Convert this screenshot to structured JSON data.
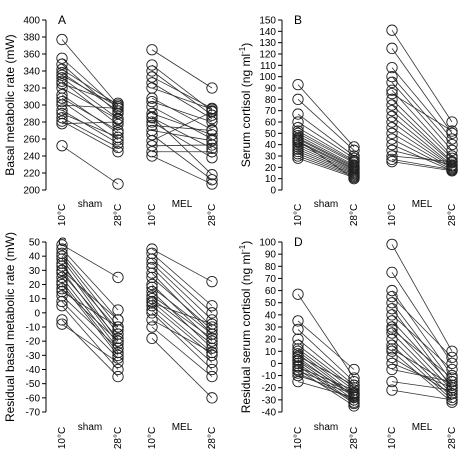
{
  "chart_data": [
    {
      "type": "scatter",
      "panel": "A",
      "ylabel": "Basal metabolic rate (mW)",
      "ylim": [
        200,
        400
      ],
      "yticks": [
        200,
        220,
        240,
        260,
        280,
        300,
        320,
        340,
        360,
        380,
        400
      ],
      "groups": [
        {
          "name": "sham",
          "x": [
            "10°C",
            "28°C"
          ],
          "pairs": [
            [
              377,
              300
            ],
            [
              355,
              296
            ],
            [
              348,
              290
            ],
            [
              342,
              300
            ],
            [
              338,
              293
            ],
            [
              335,
              298
            ],
            [
              332,
              284
            ],
            [
              328,
              277
            ],
            [
              325,
              302
            ],
            [
              320,
              283
            ],
            [
              312,
              267
            ],
            [
              308,
              270
            ],
            [
              304,
              259
            ],
            [
              300,
              296
            ],
            [
              294,
              255
            ],
            [
              290,
              262
            ],
            [
              285,
              250
            ],
            [
              281,
              245
            ],
            [
              278,
              280
            ],
            [
              252,
              207
            ]
          ]
        },
        {
          "name": "MEL",
          "x": [
            "10°C",
            "28°C"
          ],
          "pairs": [
            [
              365,
              320
            ],
            [
              347,
              293
            ],
            [
              340,
              288
            ],
            [
              333,
              296
            ],
            [
              326,
              284
            ],
            [
              320,
              295
            ],
            [
              308,
              271
            ],
            [
              304,
              280
            ],
            [
              298,
              260
            ],
            [
              290,
              265
            ],
            [
              285,
              249
            ],
            [
              280,
              238
            ],
            [
              276,
              270
            ],
            [
              270,
              258
            ],
            [
              265,
              212
            ],
            [
              258,
              292
            ],
            [
              252,
              253
            ],
            [
              245,
              245
            ],
            [
              240,
              207
            ],
            [
              286,
              218
            ]
          ]
        }
      ]
    },
    {
      "type": "scatter",
      "panel": "B",
      "ylabel": "Serum cortisol (ng ml",
      "ylabel_sup": "-1",
      "ylabel_end": ")",
      "ylim": [
        0,
        150
      ],
      "yticks": [
        0,
        10,
        20,
        30,
        40,
        50,
        60,
        70,
        80,
        90,
        100,
        110,
        120,
        130,
        140,
        150
      ],
      "groups": [
        {
          "name": "sham",
          "x": [
            "10°C",
            "28°C"
          ],
          "pairs": [
            [
              93,
              38
            ],
            [
              80,
              35
            ],
            [
              67,
              30
            ],
            [
              60,
              28
            ],
            [
              55,
              26
            ],
            [
              52,
              25
            ],
            [
              50,
              24
            ],
            [
              48,
              22
            ],
            [
              46,
              21
            ],
            [
              45,
              20
            ],
            [
              43,
              19
            ],
            [
              42,
              18
            ],
            [
              40,
              17
            ],
            [
              38,
              16
            ],
            [
              36,
              15
            ],
            [
              34,
              14
            ],
            [
              32,
              13
            ],
            [
              30,
              12
            ],
            [
              28,
              11
            ],
            [
              44,
              10
            ]
          ]
        },
        {
          "name": "MEL",
          "x": [
            "10°C",
            "28°C"
          ],
          "pairs": [
            [
              141,
              60
            ],
            [
              125,
              50
            ],
            [
              108,
              45
            ],
            [
              100,
              40
            ],
            [
              95,
              35
            ],
            [
              88,
              30
            ],
            [
              80,
              28
            ],
            [
              75,
              25
            ],
            [
              70,
              24
            ],
            [
              65,
              22
            ],
            [
              60,
              21
            ],
            [
              55,
              20
            ],
            [
              50,
              19
            ],
            [
              45,
              18
            ],
            [
              40,
              17
            ],
            [
              35,
              22
            ],
            [
              30,
              25
            ],
            [
              27,
              18
            ],
            [
              25,
              17
            ],
            [
              85,
              52
            ]
          ]
        }
      ]
    },
    {
      "type": "scatter",
      "panel": "C",
      "ylabel": "Residual basal metabolic rate (mW)",
      "ylim": [
        -70,
        50
      ],
      "yticks": [
        -70,
        -60,
        -50,
        -40,
        -30,
        -20,
        -10,
        0,
        10,
        20,
        30,
        40,
        50
      ],
      "groups": [
        {
          "name": "sham",
          "x": [
            "10°C",
            "28°C"
          ],
          "pairs": [
            [
              48,
              25
            ],
            [
              45,
              2
            ],
            [
              42,
              -5
            ],
            [
              40,
              -10
            ],
            [
              38,
              -15
            ],
            [
              35,
              -20
            ],
            [
              33,
              -12
            ],
            [
              30,
              -22
            ],
            [
              28,
              -18
            ],
            [
              25,
              -25
            ],
            [
              22,
              -28
            ],
            [
              20,
              -30
            ],
            [
              17,
              -20
            ],
            [
              15,
              -10
            ],
            [
              12,
              -25
            ],
            [
              8,
              -32
            ],
            [
              5,
              -40
            ],
            [
              -5,
              -45
            ],
            [
              -8,
              -35
            ],
            [
              30,
              -5
            ]
          ]
        },
        {
          "name": "MEL",
          "x": [
            "10°C",
            "28°C"
          ],
          "pairs": [
            [
              45,
              22
            ],
            [
              42,
              5
            ],
            [
              38,
              0
            ],
            [
              35,
              -5
            ],
            [
              32,
              -10
            ],
            [
              28,
              -15
            ],
            [
              25,
              -12
            ],
            [
              20,
              -20
            ],
            [
              15,
              -25
            ],
            [
              12,
              -18
            ],
            [
              10,
              -22
            ],
            [
              8,
              -28
            ],
            [
              5,
              -30
            ],
            [
              2,
              -35
            ],
            [
              0,
              -40
            ],
            [
              -5,
              -28
            ],
            [
              -10,
              -45
            ],
            [
              -18,
              -60
            ],
            [
              7,
              -8
            ],
            [
              18,
              -15
            ]
          ]
        }
      ]
    },
    {
      "type": "scatter",
      "panel": "D",
      "ylabel": "Residual serum cortisol (ng ml",
      "ylabel_sup": "-1",
      "ylabel_end": ")",
      "ylim": [
        -40,
        100
      ],
      "yticks": [
        -40,
        -30,
        -20,
        -10,
        0,
        10,
        20,
        30,
        40,
        50,
        60,
        70,
        80,
        90,
        100
      ],
      "groups": [
        {
          "name": "sham",
          "x": [
            "10°C",
            "28°C"
          ],
          "pairs": [
            [
              57,
              -12
            ],
            [
              35,
              -5
            ],
            [
              28,
              -15
            ],
            [
              20,
              -18
            ],
            [
              15,
              -20
            ],
            [
              12,
              -22
            ],
            [
              10,
              -25
            ],
            [
              8,
              -27
            ],
            [
              5,
              -28
            ],
            [
              2,
              -30
            ],
            [
              0,
              -32
            ],
            [
              -2,
              -33
            ],
            [
              -5,
              -35
            ],
            [
              -8,
              -30
            ],
            [
              -10,
              -25
            ],
            [
              -15,
              -28
            ],
            [
              -3,
              -22
            ],
            [
              3,
              -26
            ],
            [
              6,
              -18
            ],
            [
              -6,
              -24
            ]
          ]
        },
        {
          "name": "MEL",
          "x": [
            "10°C",
            "28°C"
          ],
          "pairs": [
            [
              98,
              10
            ],
            [
              75,
              0
            ],
            [
              60,
              -10
            ],
            [
              50,
              -15
            ],
            [
              45,
              -20
            ],
            [
              40,
              -5
            ],
            [
              35,
              -18
            ],
            [
              30,
              -22
            ],
            [
              25,
              -25
            ],
            [
              20,
              -28
            ],
            [
              15,
              -30
            ],
            [
              10,
              -32
            ],
            [
              5,
              -25
            ],
            [
              0,
              -20
            ],
            [
              -5,
              -15
            ],
            [
              -15,
              -22
            ],
            [
              -22,
              -30
            ],
            [
              55,
              5
            ],
            [
              28,
              -12
            ],
            [
              12,
              -18
            ]
          ]
        }
      ]
    }
  ]
}
